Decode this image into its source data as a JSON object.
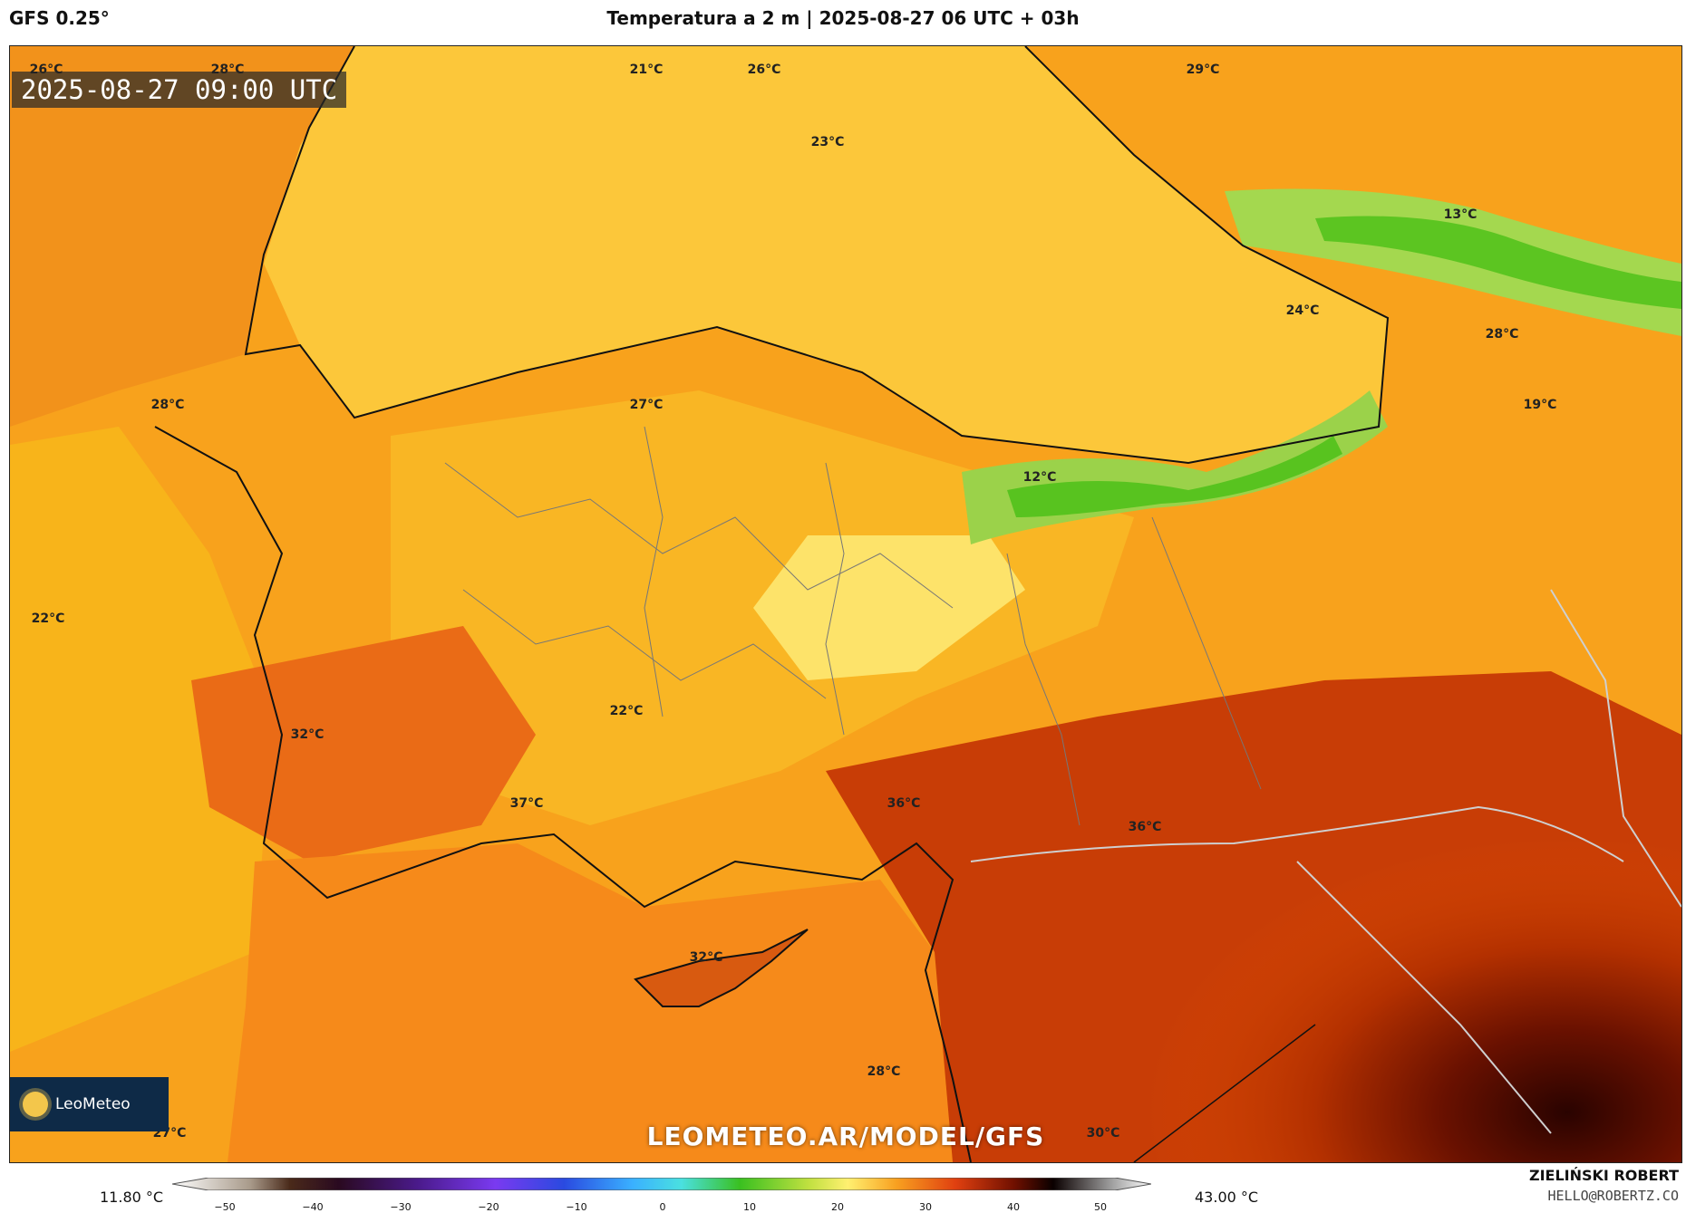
{
  "header": {
    "model": "GFS 0.25°",
    "title": "Temperatura a 2 m | 2025-08-27 06 UTC + 03h"
  },
  "map": {
    "valid_time": "2025-08-27 09:00 UTC",
    "watermark": "LEOMETEO.AR/MODEL/GFS",
    "logo": "LeoMeteo",
    "temperature_labels": [
      "26°C",
      "28°C",
      "21°C",
      "26°C",
      "29°C",
      "23°C",
      "13°C",
      "24°C",
      "28°C",
      "28°C",
      "27°C",
      "19°C",
      "12°C",
      "22°C",
      "22°C",
      "32°C",
      "37°C",
      "36°C",
      "36°C",
      "32°C",
      "28°C",
      "27°C",
      "30°C"
    ]
  },
  "legend": {
    "min_value": "11.80 °C",
    "max_value": "43.00 °C",
    "ticks": [
      "−50",
      "−40",
      "−30",
      "−20",
      "−10",
      "0",
      "10",
      "20",
      "30",
      "40",
      "50"
    ]
  },
  "credits": {
    "author": "ZIELIŃSKI ROBERT",
    "email": "HELLO@ROBERTZ.CO"
  }
}
